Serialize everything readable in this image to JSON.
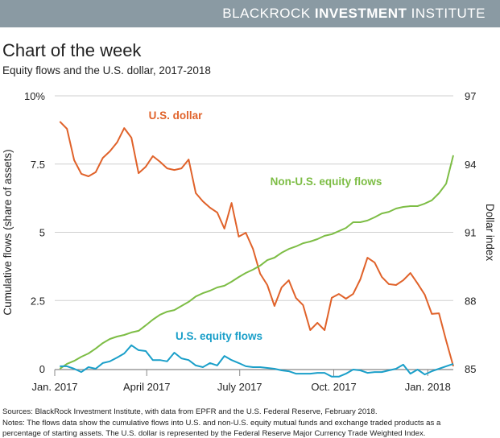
{
  "header": {
    "brand_light": "BLACKROCK",
    "brand_bold": "INVESTMENT",
    "brand_end": "INSTITUTE",
    "color": "#8a9aa3"
  },
  "title": "Chart of the week",
  "subtitle": "Equity flows and the U.S. dollar, 2017-2018",
  "chart_data": {
    "type": "line",
    "ylabel": "Cumulative flows (share of assets)",
    "y2label": "Dollar index",
    "ylim": [
      0,
      10
    ],
    "y2lim": [
      85,
      97
    ],
    "yticks": [
      "0",
      "2.5",
      "5",
      "7.5",
      "10%"
    ],
    "y2ticks": [
      "85",
      "88",
      "91",
      "94",
      "97"
    ],
    "xticks": [
      {
        "date": "2017-01-01",
        "label": "Jan. 2017"
      },
      {
        "date": "2017-04-01",
        "label": "April 2017"
      },
      {
        "date": "2017-07-01",
        "label": "July 2017"
      },
      {
        "date": "2017-10-01",
        "label": "Oct. 2017"
      },
      {
        "date": "2018-01-01",
        "label": "Jan. 2018"
      }
    ],
    "xlim": [
      "2017-01-01",
      "2018-01-26"
    ],
    "grid": true,
    "x": [
      "2017-01-06",
      "2017-01-13",
      "2017-01-20",
      "2017-01-27",
      "2017-02-03",
      "2017-02-10",
      "2017-02-17",
      "2017-02-24",
      "2017-03-03",
      "2017-03-10",
      "2017-03-17",
      "2017-03-24",
      "2017-03-31",
      "2017-04-07",
      "2017-04-14",
      "2017-04-21",
      "2017-04-28",
      "2017-05-05",
      "2017-05-12",
      "2017-05-19",
      "2017-05-26",
      "2017-06-02",
      "2017-06-09",
      "2017-06-16",
      "2017-06-23",
      "2017-06-30",
      "2017-07-07",
      "2017-07-14",
      "2017-07-21",
      "2017-07-28",
      "2017-08-04",
      "2017-08-11",
      "2017-08-18",
      "2017-08-25",
      "2017-09-01",
      "2017-09-08",
      "2017-09-15",
      "2017-09-22",
      "2017-09-29",
      "2017-10-06",
      "2017-10-13",
      "2017-10-20",
      "2017-10-27",
      "2017-11-03",
      "2017-11-10",
      "2017-11-17",
      "2017-11-24",
      "2017-12-01",
      "2017-12-08",
      "2017-12-15",
      "2017-12-22",
      "2017-12-29",
      "2018-01-05",
      "2018-01-12",
      "2018-01-19",
      "2018-01-26"
    ],
    "series": [
      {
        "name": "U.S. dollar",
        "axis": "right",
        "color": "#e0622a",
        "values": [
          95.87,
          95.55,
          94.17,
          93.57,
          93.46,
          93.64,
          94.27,
          94.56,
          94.95,
          95.58,
          95.16,
          93.6,
          93.88,
          94.35,
          94.1,
          93.81,
          93.74,
          93.81,
          94.2,
          92.72,
          92.36,
          92.08,
          91.87,
          91.16,
          92.29,
          90.81,
          90.98,
          90.27,
          89.18,
          88.68,
          87.76,
          88.58,
          88.89,
          88.12,
          87.8,
          86.7,
          87.02,
          86.7,
          88.12,
          88.29,
          88.08,
          88.29,
          88.93,
          89.88,
          89.67,
          89.04,
          88.72,
          88.68,
          88.89,
          89.21,
          88.75,
          88.26,
          87.41,
          87.44,
          86.24,
          85.11
        ]
      },
      {
        "name": "Non-U.S. equity flows",
        "axis": "left",
        "color": "#7dbd45",
        "values": [
          0,
          0.18,
          0.29,
          0.44,
          0.56,
          0.74,
          0.94,
          1.09,
          1.18,
          1.24,
          1.33,
          1.39,
          1.59,
          1.8,
          1.98,
          2.09,
          2.15,
          2.3,
          2.45,
          2.65,
          2.77,
          2.86,
          2.98,
          3.04,
          3.19,
          3.36,
          3.51,
          3.63,
          3.78,
          3.98,
          4.07,
          4.25,
          4.39,
          4.48,
          4.6,
          4.66,
          4.75,
          4.87,
          4.93,
          5.04,
          5.16,
          5.37,
          5.37,
          5.43,
          5.55,
          5.69,
          5.75,
          5.87,
          5.93,
          5.96,
          5.96,
          6.05,
          6.17,
          6.43,
          6.78,
          7.82
        ]
      },
      {
        "name": "U.S. equity flows",
        "axis": "left",
        "color": "#1a9fc9",
        "values": [
          0.09,
          0.09,
          0,
          -0.12,
          0.06,
          0,
          0.21,
          0.27,
          0.41,
          0.56,
          0.86,
          0.68,
          0.65,
          0.32,
          0.32,
          0.27,
          0.59,
          0.38,
          0.32,
          0.12,
          0.06,
          0.21,
          0.12,
          0.47,
          0.32,
          0.21,
          0.09,
          0.06,
          0.06,
          0.03,
          0,
          -0.06,
          -0.09,
          -0.18,
          -0.18,
          -0.18,
          -0.15,
          -0.15,
          -0.29,
          -0.29,
          -0.18,
          -0.03,
          -0.06,
          -0.15,
          -0.12,
          -0.12,
          -0.06,
          0,
          0.15,
          -0.18,
          -0.03,
          -0.21,
          -0.09,
          0,
          0.09,
          0.18
        ]
      }
    ]
  },
  "footer": {
    "sources": "Sources: BlackRock Investment Institute, with data from EPFR and the U.S. Federal Reserve, February 2018.",
    "notes1": "Notes: The flows data show the cumulative flows into U.S. and non-U.S. equity mutual funds and exchange traded products as a",
    "notes2": "percentage of starting assets. The U.S. dollar is represented by the Federal Reserve Major Currency Trade Weighted Index."
  }
}
